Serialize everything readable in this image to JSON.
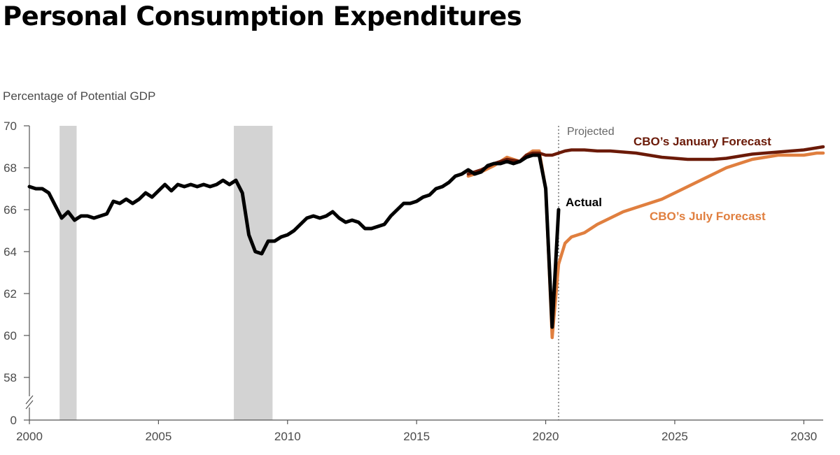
{
  "title": "Personal Consumption Expenditures",
  "colors": {
    "actual": "#000000",
    "january": "#6b1a08",
    "july": "#e07f3f",
    "recession": "#d3d3d3",
    "axis": "#555555"
  },
  "chart_data": {
    "type": "line",
    "title": "Personal Consumption Expenditures",
    "ylabel": "Percentage of Potential GDP",
    "xlabel": "",
    "xlim": [
      2000,
      2030.75
    ],
    "ylim": [
      57,
      70
    ],
    "axis_break": true,
    "y_break_value": 0,
    "x_ticks": [
      2000,
      2005,
      2010,
      2015,
      2020,
      2025,
      2030
    ],
    "y_ticks": [
      58,
      60,
      62,
      64,
      66,
      68,
      70
    ],
    "y_tick_labels": [
      "58",
      "60",
      "62",
      "64",
      "66",
      "68",
      "70"
    ],
    "x_tick_labels": [
      "2000",
      "2005",
      "2010",
      "2015",
      "2020",
      "2025",
      "2030"
    ],
    "y_break_label": "0",
    "grid": false,
    "recessions": [
      [
        2001.17,
        2001.83
      ],
      [
        2007.92,
        2009.42
      ]
    ],
    "projected_start": 2020.5,
    "annotations": {
      "projected": "Projected",
      "actual": "Actual",
      "january": "CBO’s January Forecast",
      "july": "CBO’s July Forecast"
    },
    "series": [
      {
        "name": "Actual",
        "key": "actual",
        "x": [
          2000.0,
          2000.25,
          2000.5,
          2000.75,
          2001.0,
          2001.25,
          2001.5,
          2001.75,
          2002.0,
          2002.25,
          2002.5,
          2002.75,
          2003.0,
          2003.25,
          2003.5,
          2003.75,
          2004.0,
          2004.25,
          2004.5,
          2004.75,
          2005.0,
          2005.25,
          2005.5,
          2005.75,
          2006.0,
          2006.25,
          2006.5,
          2006.75,
          2007.0,
          2007.25,
          2007.5,
          2007.75,
          2008.0,
          2008.25,
          2008.5,
          2008.75,
          2009.0,
          2009.25,
          2009.5,
          2009.75,
          2010.0,
          2010.25,
          2010.5,
          2010.75,
          2011.0,
          2011.25,
          2011.5,
          2011.75,
          2012.0,
          2012.25,
          2012.5,
          2012.75,
          2013.0,
          2013.25,
          2013.5,
          2013.75,
          2014.0,
          2014.25,
          2014.5,
          2014.75,
          2015.0,
          2015.25,
          2015.5,
          2015.75,
          2016.0,
          2016.25,
          2016.5,
          2016.75,
          2017.0,
          2017.25,
          2017.5,
          2017.75,
          2018.0,
          2018.25,
          2018.5,
          2018.75,
          2019.0,
          2019.25,
          2019.5,
          2019.75,
          2020.0,
          2020.25,
          2020.5
        ],
        "y": [
          67.1,
          67.0,
          67.0,
          66.8,
          66.2,
          65.6,
          65.9,
          65.5,
          65.7,
          65.7,
          65.6,
          65.7,
          65.8,
          66.4,
          66.3,
          66.5,
          66.3,
          66.5,
          66.8,
          66.6,
          66.9,
          67.2,
          66.9,
          67.2,
          67.1,
          67.2,
          67.1,
          67.2,
          67.1,
          67.2,
          67.4,
          67.2,
          67.4,
          66.8,
          64.8,
          64.0,
          63.9,
          64.5,
          64.5,
          64.7,
          64.8,
          65.0,
          65.3,
          65.6,
          65.7,
          65.6,
          65.7,
          65.9,
          65.6,
          65.4,
          65.5,
          65.4,
          65.1,
          65.1,
          65.2,
          65.3,
          65.7,
          66.0,
          66.3,
          66.3,
          66.4,
          66.6,
          66.7,
          67.0,
          67.1,
          67.3,
          67.6,
          67.7,
          67.9,
          67.7,
          67.8,
          68.1,
          68.2,
          68.2,
          68.3,
          68.2,
          68.3,
          68.5,
          68.6,
          68.6,
          67.0,
          60.4,
          66.0
        ]
      },
      {
        "name": "CBO’s January Forecast",
        "key": "january",
        "x": [
          2017.0,
          2017.5,
          2018.0,
          2018.5,
          2019.0,
          2019.25,
          2019.5,
          2019.75,
          2020.0,
          2020.25,
          2020.5,
          2020.75,
          2021.0,
          2021.5,
          2022.0,
          2022.5,
          2023.0,
          2023.5,
          2024.0,
          2024.5,
          2025.0,
          2025.5,
          2026.0,
          2026.5,
          2027.0,
          2027.5,
          2028.0,
          2028.5,
          2029.0,
          2029.5,
          2030.0,
          2030.5,
          2030.75
        ],
        "y": [
          67.7,
          67.9,
          68.2,
          68.4,
          68.3,
          68.6,
          68.7,
          68.7,
          68.6,
          68.6,
          68.7,
          68.8,
          68.85,
          68.85,
          68.8,
          68.8,
          68.75,
          68.7,
          68.6,
          68.5,
          68.45,
          68.4,
          68.4,
          68.4,
          68.45,
          68.55,
          68.65,
          68.7,
          68.75,
          68.8,
          68.85,
          68.95,
          69.0
        ]
      },
      {
        "name": "CBO’s July Forecast",
        "key": "july",
        "x": [
          2017.0,
          2017.5,
          2018.0,
          2018.5,
          2019.0,
          2019.25,
          2019.5,
          2019.75,
          2020.0,
          2020.25,
          2020.5,
          2020.75,
          2021.0,
          2021.5,
          2022.0,
          2022.5,
          2023.0,
          2023.5,
          2024.0,
          2024.5,
          2025.0,
          2025.5,
          2026.0,
          2026.5,
          2027.0,
          2027.5,
          2028.0,
          2028.5,
          2029.0,
          2029.5,
          2030.0,
          2030.5,
          2030.75
        ],
        "y": [
          67.6,
          67.8,
          68.1,
          68.5,
          68.3,
          68.6,
          68.8,
          68.8,
          67.0,
          59.9,
          63.4,
          64.4,
          64.7,
          64.9,
          65.3,
          65.6,
          65.9,
          66.1,
          66.3,
          66.5,
          66.8,
          67.1,
          67.4,
          67.7,
          68.0,
          68.2,
          68.4,
          68.5,
          68.6,
          68.6,
          68.6,
          68.7,
          68.7
        ]
      }
    ]
  }
}
